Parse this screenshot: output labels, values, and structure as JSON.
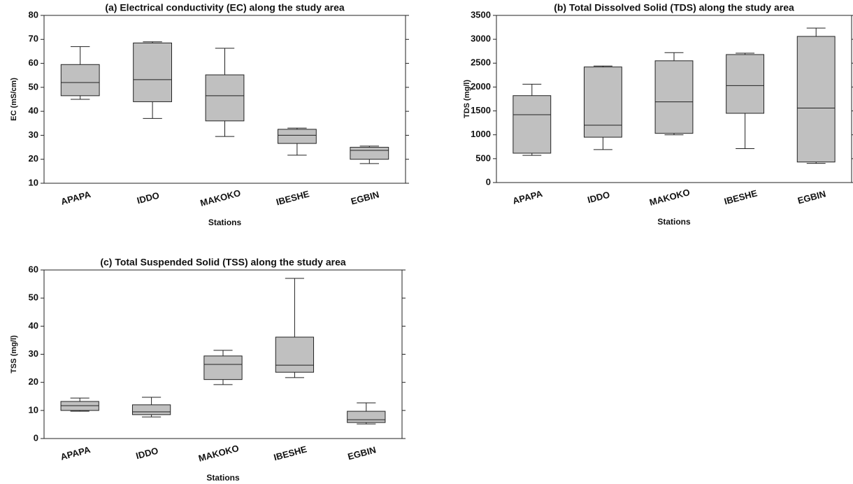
{
  "chart_data": [
    {
      "type": "box",
      "title": "(a) Electrical conductivity (EC) along the study area",
      "x_label": "Stations",
      "y_label": "EC (mS/cm)",
      "categories": [
        "APAPA",
        "IDDO",
        "MAKOKO",
        "IBESHE",
        "EGBIN"
      ],
      "min": [
        45,
        37,
        29.5,
        21.7,
        18.2
      ],
      "q1": [
        46.5,
        44,
        36,
        26.6,
        20
      ],
      "median": [
        52,
        53.2,
        46.5,
        30,
        23.7
      ],
      "q3": [
        59.5,
        68.5,
        55.2,
        32.5,
        25
      ],
      "max": [
        67,
        69,
        66.3,
        33,
        25.5
      ],
      "color": "#c0c0c0",
      "ylim": [
        10,
        80
      ],
      "yticks": [
        10,
        20,
        30,
        40,
        50,
        60,
        70,
        80
      ]
    },
    {
      "type": "box",
      "title": "(b) Total Dissolved Solid (TDS) along the study area",
      "x_label": "Stations",
      "y_label": "TDS (mg/l)",
      "categories": [
        "APAPA",
        "IDDO",
        "MAKOKO",
        "IBESHE",
        "EGBIN"
      ],
      "min": [
        570,
        690,
        1000,
        710,
        400
      ],
      "q1": [
        615,
        950,
        1030,
        1450,
        430
      ],
      "median": [
        1420,
        1200,
        1690,
        2030,
        1560
      ],
      "q3": [
        1820,
        2420,
        2550,
        2680,
        3060
      ],
      "max": [
        2060,
        2440,
        2720,
        2710,
        3235
      ],
      "color": "#c0c0c0",
      "ylim": [
        0,
        3500
      ],
      "yticks": [
        0,
        500,
        1000,
        1500,
        2000,
        2500,
        3000,
        3500
      ]
    },
    {
      "type": "box",
      "title": "(c) Total Suspended Solid (TSS) along the study area",
      "x_label": "Stations",
      "y_label": "TSS (mg/l)",
      "categories": [
        "APAPA",
        "IDDO",
        "MAKOKO",
        "IBESHE",
        "EGBIN"
      ],
      "min": [
        9.7,
        7.7,
        19.2,
        21.7,
        5.2
      ],
      "q1": [
        10,
        8.5,
        21,
        23.6,
        5.7
      ],
      "median": [
        11.7,
        9.5,
        26.4,
        26.1,
        6.7
      ],
      "q3": [
        13.2,
        12,
        29.4,
        36.1,
        9.7
      ],
      "max": [
        14.4,
        14.7,
        31.4,
        57,
        12.7
      ],
      "color": "#c0c0c0",
      "ylim": [
        0,
        60
      ],
      "yticks": [
        0,
        10,
        20,
        30,
        40,
        50,
        60
      ]
    }
  ]
}
